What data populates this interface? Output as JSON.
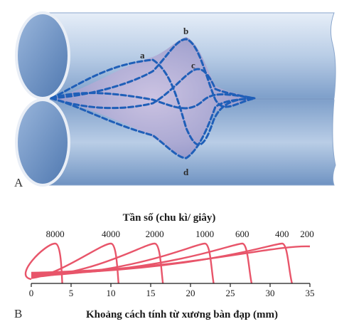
{
  "panel_a": {
    "label": "A",
    "wave_labels": [
      "a",
      "b",
      "c",
      "d"
    ]
  },
  "panel_b": {
    "label": "B",
    "top_title": "Tần số (chu kì/ giây)",
    "xlabel": "Khoảng cách tính từ xương bàn đạp (mm)"
  },
  "chart_data": {
    "type": "line",
    "title": "Tần số (chu kì/ giây)",
    "xlabel": "Khoảng cách tính từ xương bàn đạp (mm)",
    "ylabel": "",
    "xlim": [
      0,
      35
    ],
    "xticks": [
      0,
      5,
      10,
      15,
      20,
      25,
      30,
      35
    ],
    "peak_labels": [
      "8000",
      "4000",
      "2000",
      "1000",
      "600",
      "400",
      "200"
    ],
    "series": [
      {
        "name": "8000",
        "peak_x": 3.0,
        "peak_y": 1.0
      },
      {
        "name": "4000",
        "peak_x": 10.0,
        "peak_y": 1.0
      },
      {
        "name": "2000",
        "peak_x": 15.5,
        "peak_y": 1.0
      },
      {
        "name": "1000",
        "peak_x": 21.8,
        "peak_y": 1.0
      },
      {
        "name": "600",
        "peak_x": 26.5,
        "peak_y": 1.0
      },
      {
        "name": "400",
        "peak_x": 31.5,
        "peak_y": 1.0
      },
      {
        "name": "200",
        "peak_x": 35.0,
        "peak_y": 1.0
      }
    ]
  }
}
